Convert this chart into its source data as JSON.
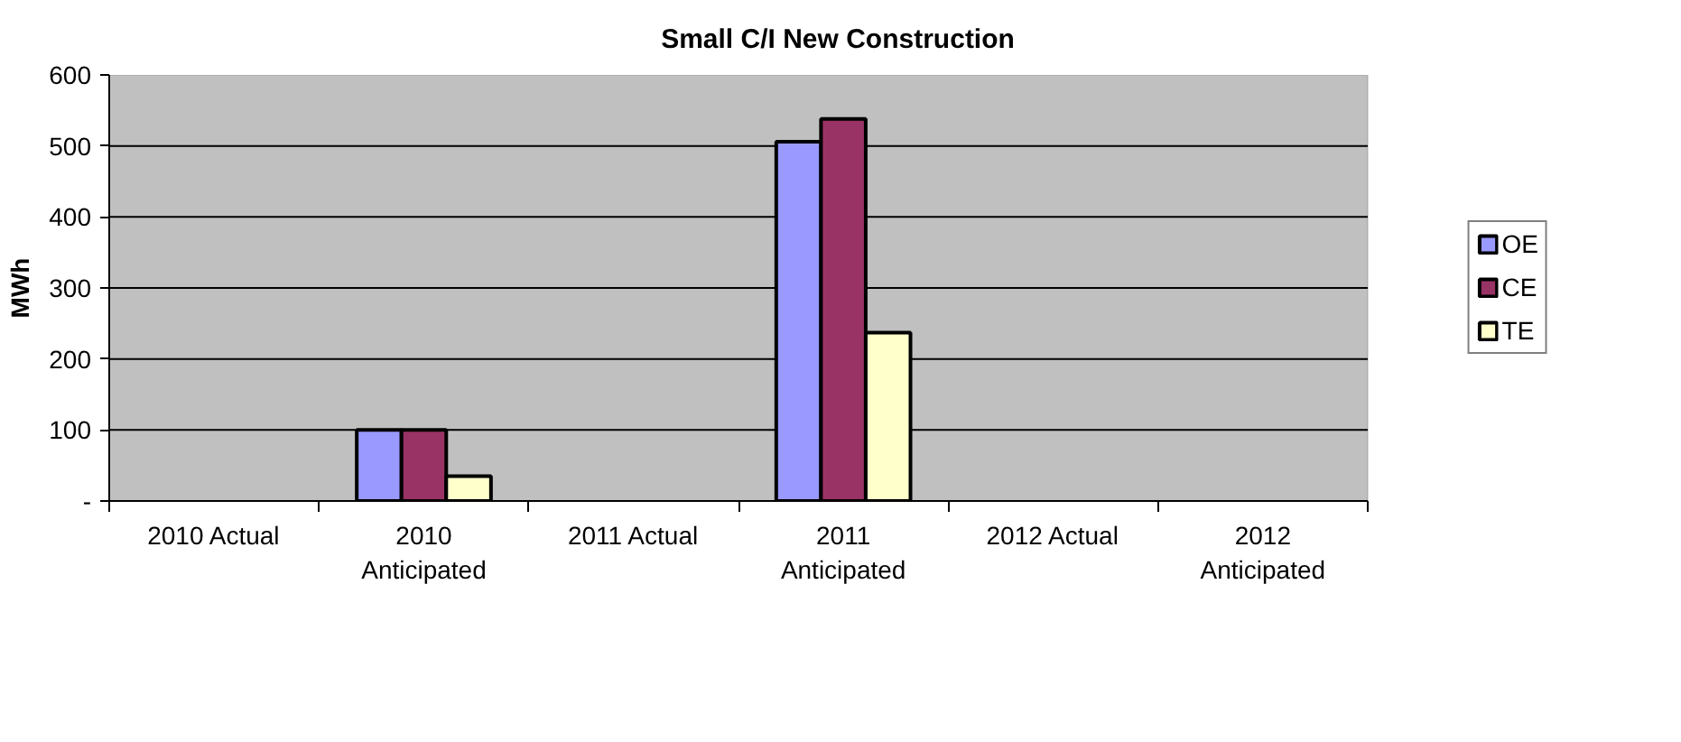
{
  "chart_data": {
    "type": "bar",
    "title": "Small C/I New Construction",
    "ylabel": "MWh",
    "categories": [
      "2010 Actual",
      "2010\nAnticipated",
      "2011 Actual",
      "2011\nAnticipated",
      "2012 Actual",
      "2012\nAnticipated"
    ],
    "series": [
      {
        "name": "OE",
        "color": "#9999ff",
        "values": [
          null,
          100,
          null,
          506,
          null,
          null
        ]
      },
      {
        "name": "CE",
        "color": "#993366",
        "values": [
          null,
          100,
          null,
          538,
          null,
          null
        ]
      },
      {
        "name": "TE",
        "color": "#ffffcc",
        "values": [
          null,
          35,
          null,
          237,
          null,
          null
        ]
      }
    ],
    "ylim": [
      0,
      600
    ],
    "yticks": [
      {
        "value": 0,
        "label": "-"
      },
      100,
      200,
      300,
      400,
      500,
      600
    ],
    "grid": "y",
    "legend": "right"
  }
}
